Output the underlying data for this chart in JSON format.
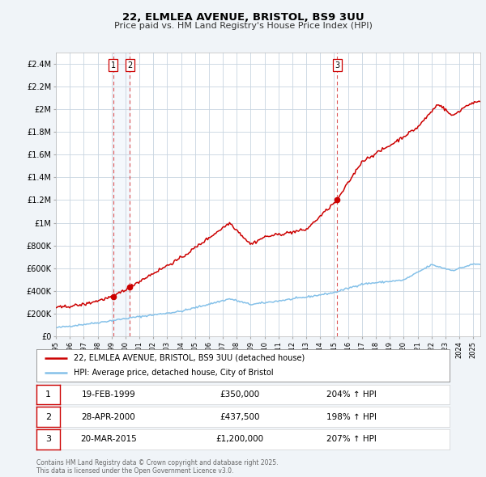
{
  "title": "22, ELMLEA AVENUE, BRISTOL, BS9 3UU",
  "subtitle": "Price paid vs. HM Land Registry's House Price Index (HPI)",
  "bg_color": "#f0f4f8",
  "plot_bg_color": "#ffffff",
  "grid_color": "#c8d4e0",
  "hpi_line_color": "#85c1e9",
  "price_line_color": "#cc0000",
  "ylim": [
    0,
    2500000
  ],
  "yticks": [
    0,
    200000,
    400000,
    600000,
    800000,
    1000000,
    1200000,
    1400000,
    1600000,
    1800000,
    2000000,
    2200000,
    2400000
  ],
  "ytick_labels": [
    "£0",
    "£200K",
    "£400K",
    "£600K",
    "£800K",
    "£1M",
    "£1.2M",
    "£1.4M",
    "£1.6M",
    "£1.8M",
    "£2M",
    "£2.2M",
    "£2.4M"
  ],
  "xlim_start": 1995.0,
  "xlim_end": 2025.5,
  "sale_date_nums": [
    1999.12,
    2000.32,
    2015.22
  ],
  "sale_prices": [
    350000,
    437500,
    1200000
  ],
  "sale_labels": [
    "1",
    "2",
    "3"
  ],
  "table_rows": [
    {
      "num": "1",
      "date": "19-FEB-1999",
      "price": "£350,000",
      "hpi": "204% ↑ HPI"
    },
    {
      "num": "2",
      "date": "28-APR-2000",
      "price": "£437,500",
      "hpi": "198% ↑ HPI"
    },
    {
      "num": "3",
      "date": "20-MAR-2015",
      "price": "£1,200,000",
      "hpi": "207% ↑ HPI"
    }
  ],
  "footer": "Contains HM Land Registry data © Crown copyright and database right 2025.\nThis data is licensed under the Open Government Licence v3.0.",
  "legend_line1": "22, ELMLEA AVENUE, BRISTOL, BS9 3UU (detached house)",
  "legend_line2": "HPI: Average price, detached house, City of Bristol",
  "hpi_key_dates": [
    1995.0,
    1998.0,
    2000.5,
    2004.0,
    2007.5,
    2009.0,
    2010.0,
    2013.0,
    2015.0,
    2017.0,
    2020.0,
    2022.0,
    2023.5,
    2025.0
  ],
  "hpi_key_vals": [
    75000,
    120000,
    165000,
    220000,
    330000,
    280000,
    295000,
    345000,
    385000,
    460000,
    495000,
    630000,
    580000,
    635000
  ],
  "price_key_dates": [
    1995.0,
    1997.0,
    1999.12,
    2000.33,
    2002.0,
    2004.0,
    2007.5,
    2009.0,
    2010.0,
    2013.0,
    2015.22,
    2017.0,
    2019.0,
    2021.0,
    2022.5,
    2023.5,
    2024.5,
    2025.0
  ],
  "price_key_vals": [
    250000,
    280000,
    350000,
    437500,
    555000,
    690000,
    1000000,
    810000,
    875000,
    940000,
    1200000,
    1540000,
    1680000,
    1840000,
    2050000,
    1940000,
    2030000,
    2060000
  ]
}
